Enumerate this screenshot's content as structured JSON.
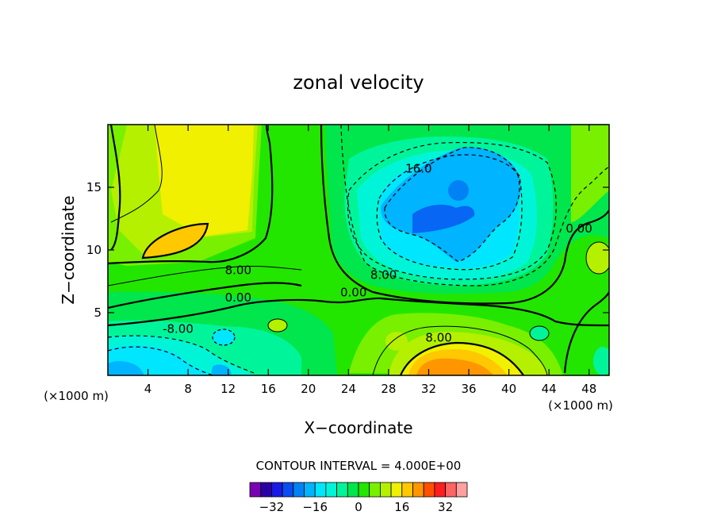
{
  "chart_data": {
    "type": "heatmap",
    "subtype": "filled-contour",
    "title": "zonal velocity",
    "xlabel": "X−coordinate",
    "ylabel": "Z−coordinate",
    "x_unit_label": "(×1000 m)",
    "z_unit_label": "(×1000 m)",
    "xlim": [
      0,
      50
    ],
    "ylim": [
      0,
      20
    ],
    "x_ticks": [
      "4",
      "8",
      "12",
      "16",
      "20",
      "24",
      "28",
      "32",
      "36",
      "40",
      "44",
      "48"
    ],
    "x_tick_values": [
      4,
      8,
      12,
      16,
      20,
      24,
      28,
      32,
      36,
      40,
      44,
      48
    ],
    "y_ticks": [
      "5",
      "10",
      "15"
    ],
    "y_tick_values": [
      5,
      10,
      15
    ],
    "contour_interval_text": "CONTOUR INTERVAL = 4.000E+00",
    "contour_interval": 4,
    "contour_labels": [
      {
        "text": "16.0",
        "x": 31,
        "z": 16.5
      },
      {
        "text": "8.00",
        "x": 27.5,
        "z": 8.0
      },
      {
        "text": "0.00",
        "x": 24.5,
        "z": 6.6
      },
      {
        "text": "0.00",
        "x": 47,
        "z": 11.7
      },
      {
        "text": "8.00",
        "x": 13,
        "z": 8.4
      },
      {
        "text": "0.00",
        "x": 13,
        "z": 6.2
      },
      {
        "text": "-8.00",
        "x": 7,
        "z": 3.7
      },
      {
        "text": "8.00",
        "x": 33,
        "z": 3.0
      }
    ],
    "colorbar": {
      "levels": [
        -36,
        -32,
        -28,
        -24,
        -20,
        -16,
        -12,
        -8,
        -4,
        0,
        4,
        8,
        12,
        16,
        20,
        24,
        28,
        32,
        36
      ],
      "colors": [
        "#7a00b4",
        "#2a00a6",
        "#1a1ae6",
        "#0a4cf0",
        "#0082f5",
        "#00b4ff",
        "#00e6ff",
        "#00f5d8",
        "#00f59a",
        "#00e64c",
        "#22e600",
        "#78f000",
        "#b4f000",
        "#f0f000",
        "#ffc800",
        "#ff9600",
        "#ff5000",
        "#ff1e1e",
        "#ff6464",
        "#ffa0a0"
      ],
      "tick_labels": [
        "−32",
        "−16",
        "0",
        "16",
        "32"
      ],
      "tick_values": [
        -32,
        -16,
        0,
        16,
        32
      ]
    },
    "features": [
      {
        "x": 9,
        "z": 10.5,
        "value": 23
      },
      {
        "x": 8,
        "z": 15,
        "value": 14
      },
      {
        "x": 33,
        "z": 13.5,
        "value": -21
      },
      {
        "x": 33,
        "z": 1,
        "value": 22
      },
      {
        "x": 4,
        "z": 2,
        "value": -12
      }
    ]
  }
}
